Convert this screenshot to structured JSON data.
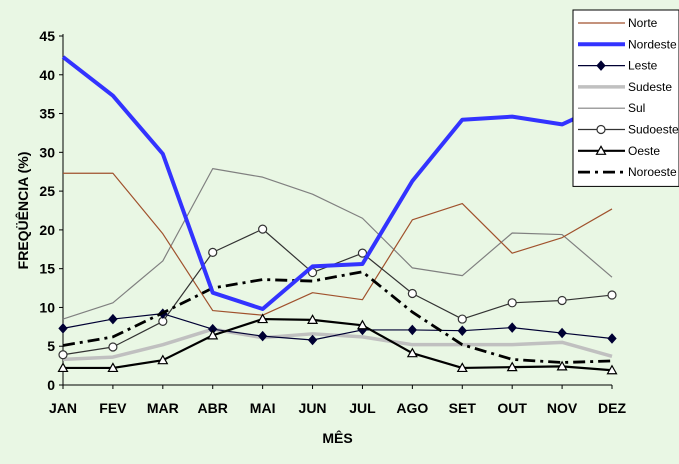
{
  "chart_data": {
    "type": "line",
    "xlabel": "MÊS",
    "ylabel": "FREQÜÊNCIA  (%)",
    "categories": [
      "JAN",
      "FEV",
      "MAR",
      "ABR",
      "MAI",
      "JUN",
      "JUL",
      "AGO",
      "SET",
      "OUT",
      "NOV",
      "DEZ"
    ],
    "yticks": [
      0,
      5,
      10,
      15,
      20,
      25,
      30,
      35,
      40,
      45
    ],
    "ylim": [
      0,
      45
    ],
    "grid": false,
    "legend_position": "top-right",
    "series": [
      {
        "name": "Norte",
        "color": "#a0522d",
        "style": "solid-thin",
        "marker": "none",
        "values": [
          27.3,
          27.3,
          19.5,
          9.6,
          9.0,
          11.9,
          11.0,
          21.3,
          23.4,
          17.0,
          19.0,
          22.7
        ]
      },
      {
        "name": "Nordeste",
        "color": "#3333ff",
        "style": "solid-thick",
        "marker": "none",
        "values": [
          42.3,
          37.3,
          29.8,
          11.9,
          9.8,
          15.3,
          15.6,
          26.3,
          34.2,
          34.6,
          33.6,
          36.6
        ]
      },
      {
        "name": "Leste",
        "color": "#000033",
        "style": "solid-thin",
        "marker": "diamond",
        "values": [
          7.3,
          8.5,
          9.2,
          7.2,
          6.3,
          5.8,
          7.1,
          7.1,
          7.0,
          7.4,
          6.7,
          6.0
        ]
      },
      {
        "name": "Sudeste",
        "color": "#c0c0c0",
        "style": "solid-thick",
        "marker": "none",
        "values": [
          3.3,
          3.6,
          5.2,
          7.2,
          6.1,
          6.6,
          6.2,
          5.2,
          5.2,
          5.2,
          5.5,
          3.7
        ]
      },
      {
        "name": "Sul",
        "color": "#808080",
        "style": "solid-thin",
        "marker": "none",
        "values": [
          8.5,
          10.6,
          16.0,
          27.9,
          26.8,
          24.6,
          21.5,
          15.1,
          14.1,
          19.6,
          19.4,
          13.9
        ]
      },
      {
        "name": "Sudoeste",
        "color": "#333333",
        "style": "solid-thin",
        "marker": "circle",
        "values": [
          3.9,
          4.9,
          8.2,
          17.1,
          20.1,
          14.5,
          17.0,
          11.8,
          8.5,
          10.6,
          10.9,
          11.6
        ]
      },
      {
        "name": "Oeste",
        "color": "#000000",
        "style": "solid-medium",
        "marker": "triangle",
        "values": [
          2.2,
          2.2,
          3.2,
          6.4,
          8.5,
          8.4,
          7.7,
          4.1,
          2.2,
          2.3,
          2.4,
          1.9
        ]
      },
      {
        "name": "Noroeste",
        "color": "#000000",
        "style": "dashdot",
        "marker": "none",
        "values": [
          5.1,
          6.2,
          9.3,
          12.5,
          13.6,
          13.4,
          14.6,
          9.4,
          5.2,
          3.3,
          2.9,
          3.1
        ]
      }
    ]
  }
}
